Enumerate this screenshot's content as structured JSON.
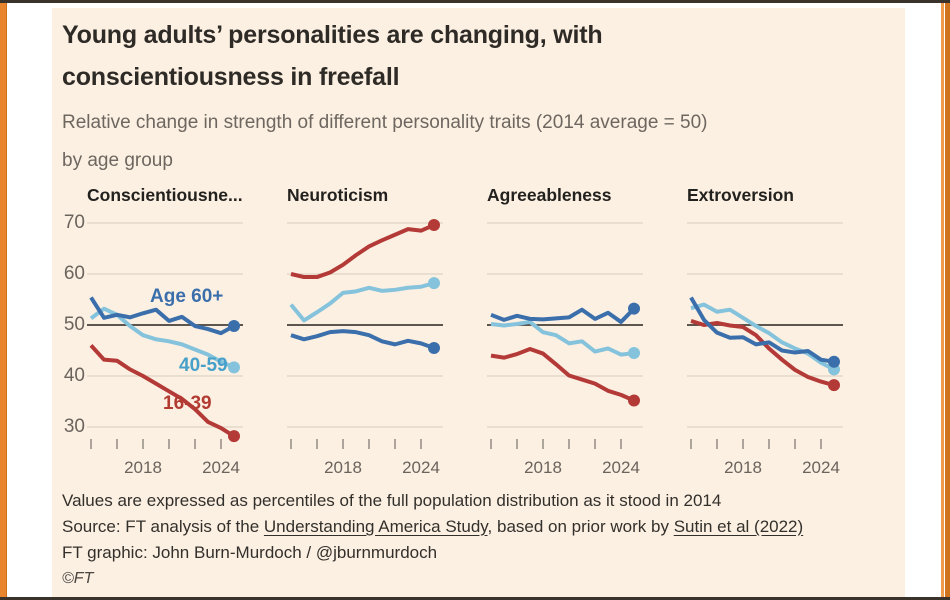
{
  "palette": {
    "background": "#fcf0e3",
    "accent_orange": "#e9862d",
    "dark_blue": "#3b6fab",
    "light_blue": "#85c3dc",
    "light_blue_label": "#47a0c9",
    "red": "#b43a37",
    "grid": "#ddd2c3",
    "baseline": "#45403a",
    "tick": "#9b9289",
    "axis_text": "#6b645d"
  },
  "header": {
    "title_lines": [
      "Young adults’ personalities are changing, with",
      "conscientiousness in freefall"
    ],
    "subtitle_lines": [
      "Relative change in strength of different personality traits (2014 average = 50)",
      "by age group"
    ]
  },
  "axis": {
    "y_labels": [
      "70",
      "60",
      "50",
      "40",
      "30"
    ],
    "x_labels": [
      "2018",
      "2024"
    ]
  },
  "series_labels": {
    "age_60": "Age 60+",
    "age_40_59": "40-59",
    "age_16_39": "16-39"
  },
  "chart_data": {
    "type": "line",
    "x": [
      2014,
      2015,
      2016,
      2017,
      2018,
      2019,
      2020,
      2021,
      2022,
      2023,
      2024,
      2025
    ],
    "x_ticks": [
      2014,
      2016,
      2018,
      2020,
      2022,
      2024
    ],
    "year_labels": [
      {
        "year": 2018,
        "text": "2018"
      },
      {
        "year": 2024,
        "text": "2024"
      }
    ],
    "ylim": [
      26,
      72
    ],
    "y_gridlines": [
      70,
      60,
      50,
      40,
      30
    ],
    "baseline": 50,
    "legend": [
      "Age 60+",
      "40-59",
      "16-39"
    ],
    "charts": [
      {
        "title": "Conscientiousne...",
        "series": [
          {
            "label": "16-39",
            "color_key": "red",
            "values": [
              46,
              43.2,
              43,
              41.3,
              40,
              38.5,
              37,
              35.5,
              33.5,
              31,
              29.8,
              28.2
            ]
          },
          {
            "label": "40-59",
            "color_key": "light_blue",
            "values": [
              51.3,
              53.2,
              52,
              49.8,
              48,
              47.2,
              46.8,
              46.2,
              45.2,
              44.2,
              42.8,
              41.7
            ]
          },
          {
            "label": "Age 60+",
            "color_key": "dark_blue",
            "values": [
              55.4,
              51.4,
              52,
              51.5,
              52.3,
              53,
              50.8,
              51.6,
              49.8,
              49.2,
              48.4,
              49.8
            ]
          }
        ]
      },
      {
        "title": "Neuroticism",
        "series": [
          {
            "label": "16-39",
            "color_key": "red",
            "values": [
              60,
              59.4,
              59.4,
              60.3,
              61.8,
              63.7,
              65.4,
              66.6,
              67.7,
              68.8,
              68.5,
              69.6
            ]
          },
          {
            "label": "40-59",
            "color_key": "light_blue",
            "values": [
              54,
              50.9,
              52.5,
              54.2,
              56.3,
              56.6,
              57.3,
              56.7,
              56.9,
              57.3,
              57.5,
              58.2
            ]
          },
          {
            "label": "Age 60+",
            "color_key": "dark_blue",
            "values": [
              48,
              47.2,
              47.8,
              48.6,
              48.8,
              48.6,
              48,
              46.8,
              46.2,
              46.9,
              46.4,
              45.5
            ]
          }
        ]
      },
      {
        "title": "Agreeableness",
        "series": [
          {
            "label": "16-39",
            "color_key": "red",
            "values": [
              44,
              43.6,
              44.3,
              45.3,
              44.4,
              42.3,
              40.1,
              39.3,
              38.5,
              37.1,
              36.3,
              35.2
            ]
          },
          {
            "label": "40-59",
            "color_key": "light_blue",
            "values": [
              50.2,
              49.9,
              50.2,
              50.6,
              48.6,
              48,
              46.4,
              46.8,
              44.8,
              45.4,
              44.2,
              44.5
            ]
          },
          {
            "label": "Age 60+",
            "color_key": "dark_blue",
            "values": [
              52,
              51,
              51.8,
              51.2,
              51.1,
              51.3,
              51.5,
              53,
              51.2,
              52.4,
              50.6,
              53.2
            ]
          }
        ]
      },
      {
        "title": "Extroversion",
        "series": [
          {
            "label": "16-39",
            "color_key": "red",
            "values": [
              50.8,
              50,
              50.4,
              49.9,
              49.6,
              48,
              45.4,
              43.2,
              41.2,
              39.8,
              38.9,
              38.2
            ]
          },
          {
            "label": "40-59",
            "color_key": "light_blue",
            "values": [
              53.3,
              54,
              52.6,
              53,
              51.4,
              49.8,
              48.4,
              46.6,
              45.4,
              44.4,
              42.6,
              41.3
            ]
          },
          {
            "label": "Age 60+",
            "color_key": "dark_blue",
            "values": [
              55.4,
              51,
              48.5,
              47.5,
              47.6,
              46.2,
              46.6,
              45,
              44.6,
              44.9,
              43.2,
              42.8
            ]
          }
        ]
      }
    ]
  },
  "footer": {
    "footnote": "Values are expressed as percentiles of the full population distribution as it stood in 2014",
    "source_prefix": "Source: FT analysis of the ",
    "source_link_1": "Understanding America Study",
    "source_middle": ", based on prior work by ",
    "source_link_2": "Sutin et al (2022)",
    "credit": "FT graphic: John Burn-Murdoch / @jburnmurdoch",
    "copyright": "©FT"
  }
}
